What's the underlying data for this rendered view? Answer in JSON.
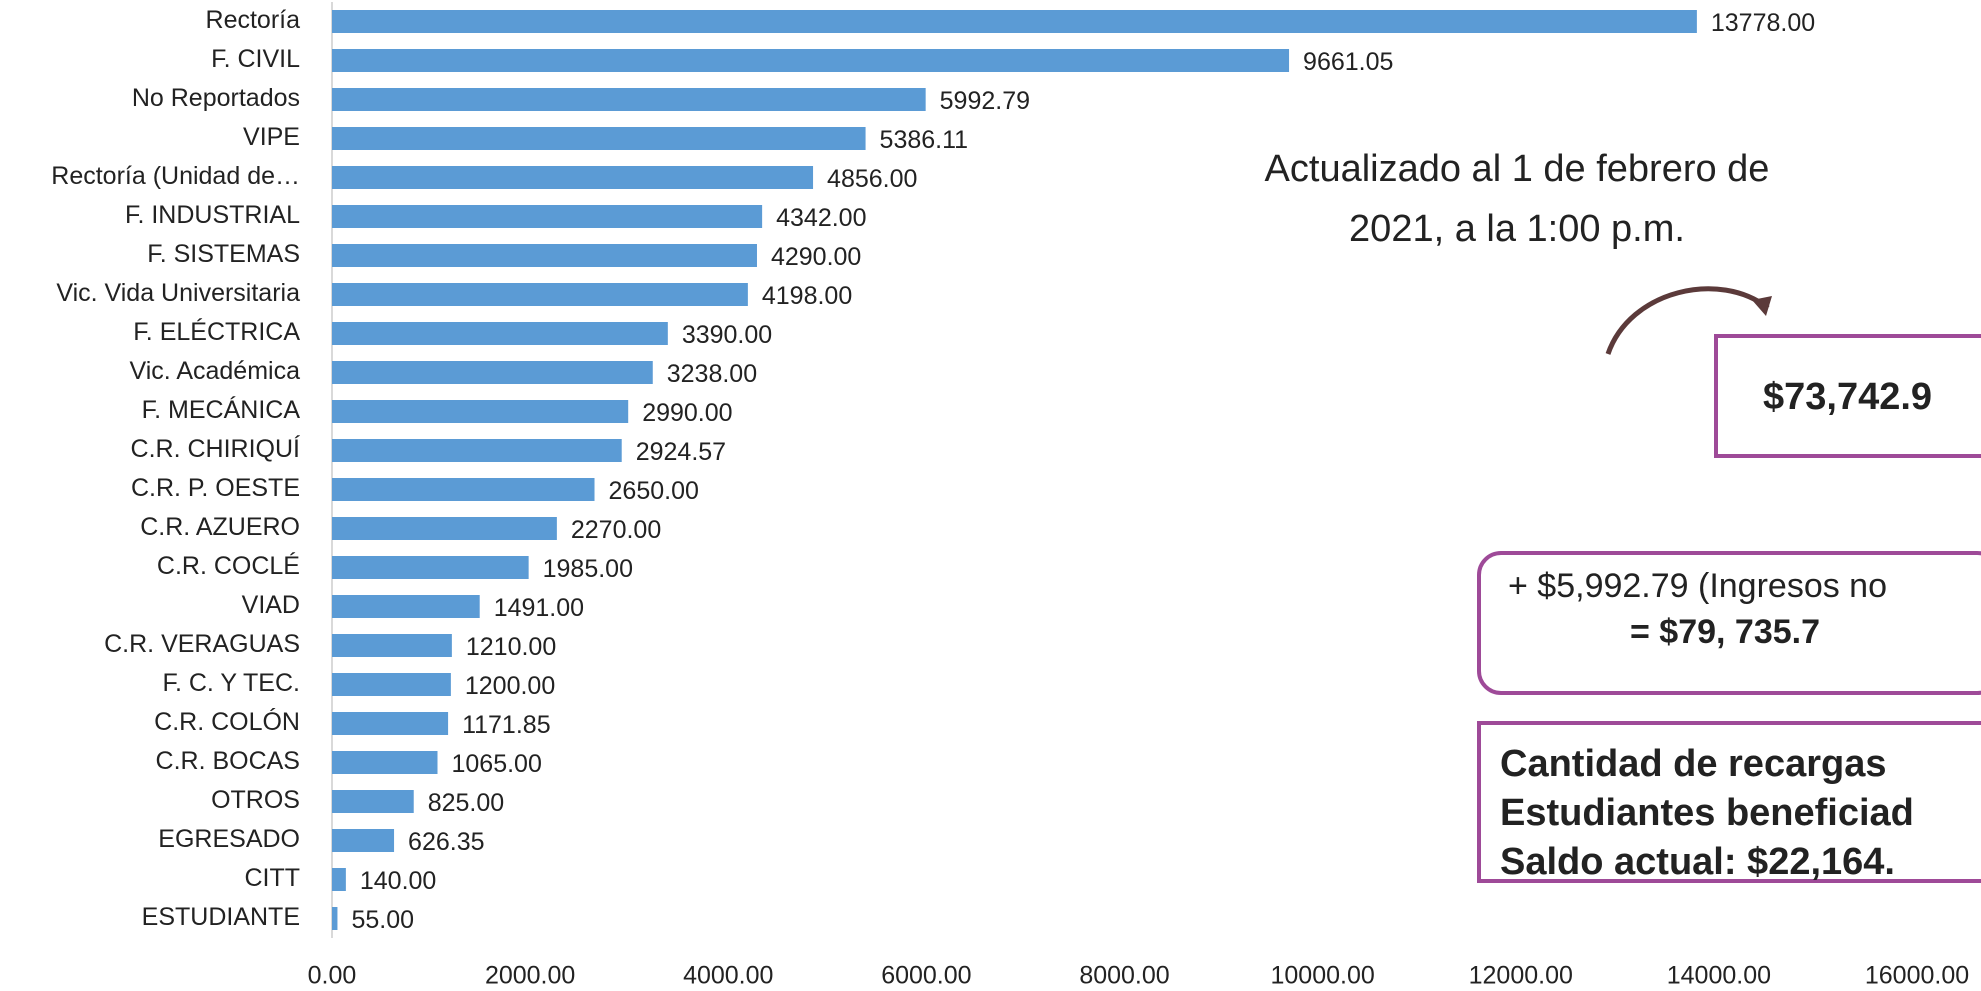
{
  "chart_data": {
    "type": "bar",
    "orientation": "horizontal",
    "color": "#5b9bd5",
    "categories": [
      "Rectoría",
      "F. CIVIL",
      "No Reportados",
      "VIPE",
      "Rectoría (Unidad de…",
      "F. INDUSTRIAL",
      "F. SISTEMAS",
      "Vic. Vida Universitaria",
      "F. ELÉCTRICA",
      "Vic. Académica",
      "F. MECÁNICA",
      "C.R. CHIRIQUÍ",
      "C.R. P. OESTE",
      "C.R. AZUERO",
      "C.R. COCLÉ",
      "VIAD",
      "C.R. VERAGUAS",
      "F. C. Y TEC.",
      "C.R. COLÓN",
      "C.R. BOCAS",
      "OTROS",
      "EGRESADO",
      "CITT",
      "ESTUDIANTE"
    ],
    "values": [
      13778,
      9661.05,
      5992.79,
      5386.11,
      4856,
      4342,
      4290,
      4198,
      3390,
      3238,
      2990,
      2924.57,
      2650,
      2270,
      1985,
      1491,
      1210,
      1200,
      1171.85,
      1065,
      825,
      626.35,
      140,
      55
    ],
    "value_labels": [
      "13778.00",
      "9661.05",
      "5992.79",
      "5386.11",
      "4856.00",
      "4342.00",
      "4290.00",
      "4198.00",
      "3390.00",
      "3238.00",
      "2990.00",
      "2924.57",
      "2650.00",
      "2270.00",
      "1985.00",
      "1491.00",
      "1210.00",
      "1200.00",
      "1171.85",
      "1065.00",
      "825.00",
      "626.35",
      "140.00",
      "55.00"
    ],
    "xlim": [
      0,
      16000
    ],
    "xticks": [
      {
        "value": 0,
        "label": "0.00"
      },
      {
        "value": 2000,
        "label": "2000.00"
      },
      {
        "value": 4000,
        "label": "4000.00"
      },
      {
        "value": 6000,
        "label": "6000.00"
      },
      {
        "value": 8000,
        "label": "8000.00"
      },
      {
        "value": 10000,
        "label": "10000.00"
      },
      {
        "value": 12000,
        "label": "12000.00"
      },
      {
        "value": 14000,
        "label": "14000.00"
      },
      {
        "value": 16000,
        "label": "16000.00"
      }
    ],
    "annotations": {
      "updated": [
        "Actualizado al 1 de febrero de",
        "2021, a la 1:00 p.m."
      ],
      "total": "$73,742.9",
      "extra": [
        "+ $5,992.79 (Ingresos no",
        "= $79, 735.7"
      ],
      "summary": [
        "Cantidad de recargas",
        "Estudiantes beneficiad",
        "Saldo actual: $22,164."
      ]
    }
  }
}
